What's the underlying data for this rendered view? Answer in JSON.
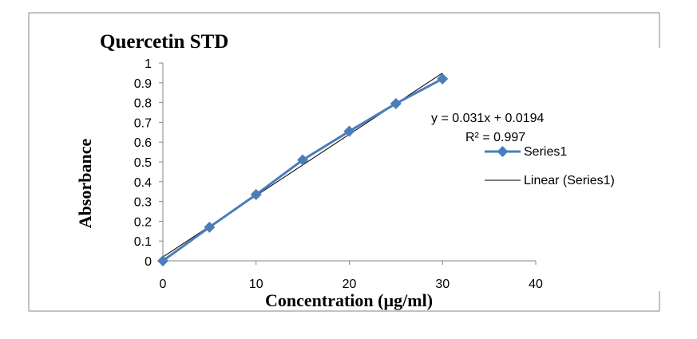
{
  "chart_data": {
    "type": "scatter",
    "title": "Quercetin STD",
    "xlabel": "Concentration (µg/ml)",
    "ylabel": "Absorbance",
    "xlim": [
      0,
      40
    ],
    "ylim": [
      0,
      1
    ],
    "x_ticks": [
      "0",
      "10",
      "20",
      "30",
      "40"
    ],
    "y_ticks": [
      "0",
      "0.1",
      "0.2",
      "0.3",
      "0.4",
      "0.5",
      "0.6",
      "0.7",
      "0.8",
      "0.9",
      "1"
    ],
    "grid": false,
    "legend_position": "right",
    "series": [
      {
        "name": "Series1",
        "color": "#4a7ebb",
        "marker": "diamond",
        "x": [
          0,
          5,
          10,
          15,
          20,
          25,
          30
        ],
        "y": [
          0.0,
          0.17,
          0.335,
          0.51,
          0.655,
          0.795,
          0.92
        ]
      }
    ],
    "trendline": {
      "name": "Linear (Series1)",
      "type": "linear",
      "slope": 0.031,
      "intercept": 0.0194,
      "color": "#000000",
      "equation_label": "y = 0.031x + 0.0194",
      "r2_label": "R² = 0.997"
    }
  }
}
